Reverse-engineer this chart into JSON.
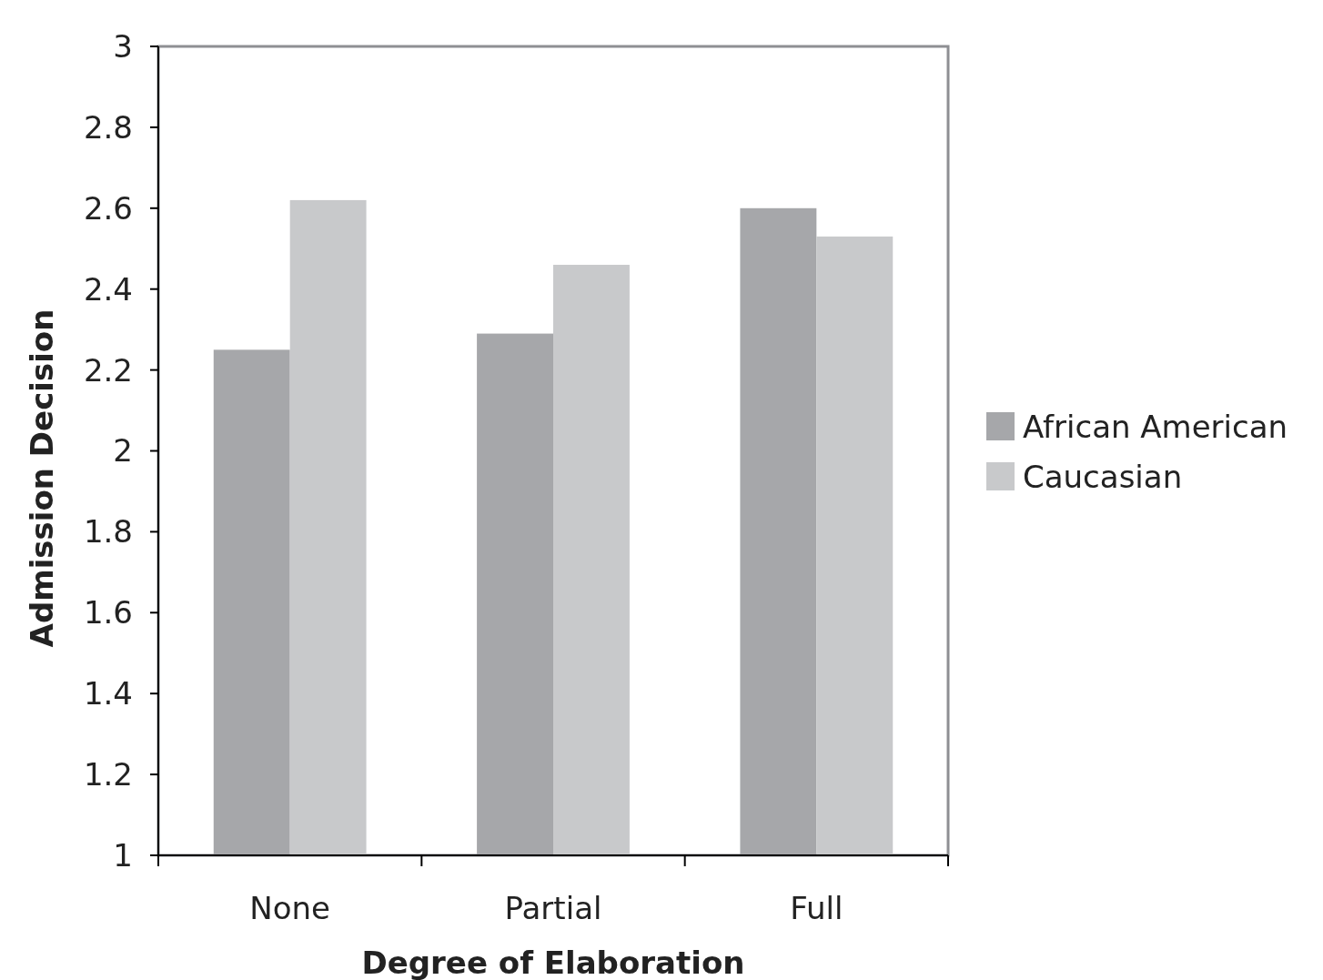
{
  "chart_data": {
    "type": "bar",
    "xlabel": "Degree of Elaboration",
    "ylabel": "Admission Decision",
    "categories": [
      "None",
      "Partial",
      "Full"
    ],
    "series": [
      {
        "name": "African American",
        "color": "#a6a7aa",
        "values": [
          2.25,
          2.29,
          2.6
        ]
      },
      {
        "name": "Caucasian",
        "color": "#c8c9cb",
        "values": [
          2.62,
          2.46,
          2.53
        ]
      }
    ],
    "ylim": [
      1,
      3
    ],
    "yticks": [
      1,
      1.2,
      1.4,
      1.6,
      1.8,
      2,
      2.2,
      2.4,
      2.6,
      2.8,
      3
    ],
    "grid": false,
    "legend": "right"
  }
}
